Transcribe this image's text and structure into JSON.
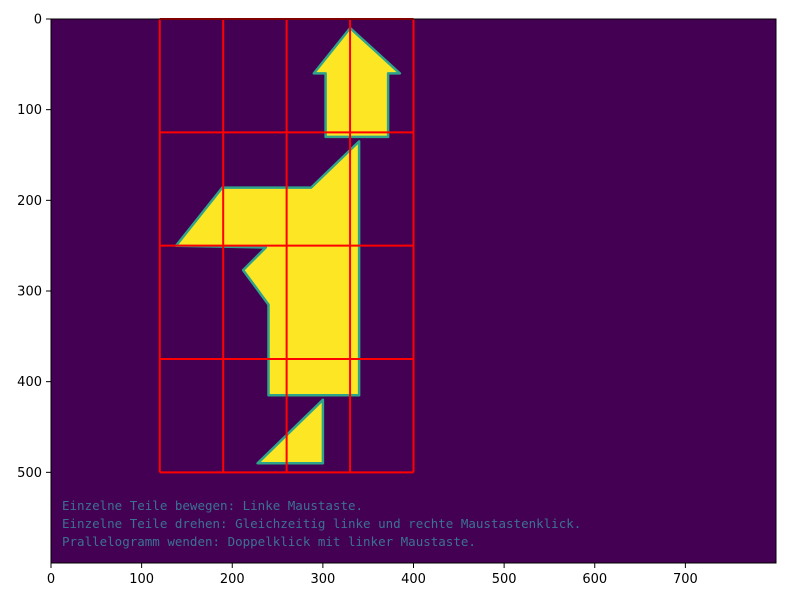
{
  "colors": {
    "background": "#440154",
    "piece_fill": "#fde725",
    "piece_edge": "#2ea58a",
    "grid_line": "#ff0000",
    "instruction_text": "#3a8ea1"
  },
  "board": {
    "x_range": [
      0,
      800
    ],
    "y_range": [
      0,
      600
    ],
    "grid": {
      "x_lines": [
        120,
        190,
        260,
        330,
        400
      ],
      "y_lines": [
        0,
        125,
        250,
        375,
        500
      ]
    },
    "pieces": [
      {
        "name": "arrow-piece",
        "points": [
          [
            330,
            10
          ],
          [
            385,
            60
          ],
          [
            372,
            60
          ],
          [
            372,
            130
          ],
          [
            303,
            130
          ],
          [
            303,
            60
          ],
          [
            290,
            60
          ]
        ]
      },
      {
        "name": "body-piece",
        "points": [
          [
            340,
            135
          ],
          [
            340,
            415
          ],
          [
            240,
            415
          ],
          [
            240,
            315
          ],
          [
            212,
            277
          ],
          [
            237,
            252
          ],
          [
            138,
            250
          ],
          [
            189,
            186
          ],
          [
            287,
            186
          ]
        ]
      },
      {
        "name": "foot-piece",
        "points": [
          [
            300,
            420
          ],
          [
            300,
            490
          ],
          [
            228,
            490
          ]
        ]
      }
    ]
  },
  "chart_data": {
    "type": "heatmap",
    "xlim": [
      0,
      800
    ],
    "ylim": [
      600,
      0
    ],
    "x_ticks": [
      {
        "value": 0,
        "label": "0"
      },
      {
        "value": 100,
        "label": "100"
      },
      {
        "value": 200,
        "label": "200"
      },
      {
        "value": 300,
        "label": "300"
      },
      {
        "value": 400,
        "label": "400"
      },
      {
        "value": 500,
        "label": "500"
      },
      {
        "value": 600,
        "label": "600"
      },
      {
        "value": 700,
        "label": "700"
      }
    ],
    "y_ticks": [
      {
        "value": 0,
        "label": "0"
      },
      {
        "value": 100,
        "label": "100"
      },
      {
        "value": 200,
        "label": "200"
      },
      {
        "value": 300,
        "label": "300"
      },
      {
        "value": 400,
        "label": "400"
      },
      {
        "value": 500,
        "label": "500"
      }
    ]
  },
  "instructions": [
    "Einzelne Teile bewegen: Linke Maustaste.",
    "Einzelne Teile drehen: Gleichzeitig linke und rechte Maustastenklick.",
    "Prallelogramm wenden: Doppelklick mit linker Maustaste."
  ]
}
